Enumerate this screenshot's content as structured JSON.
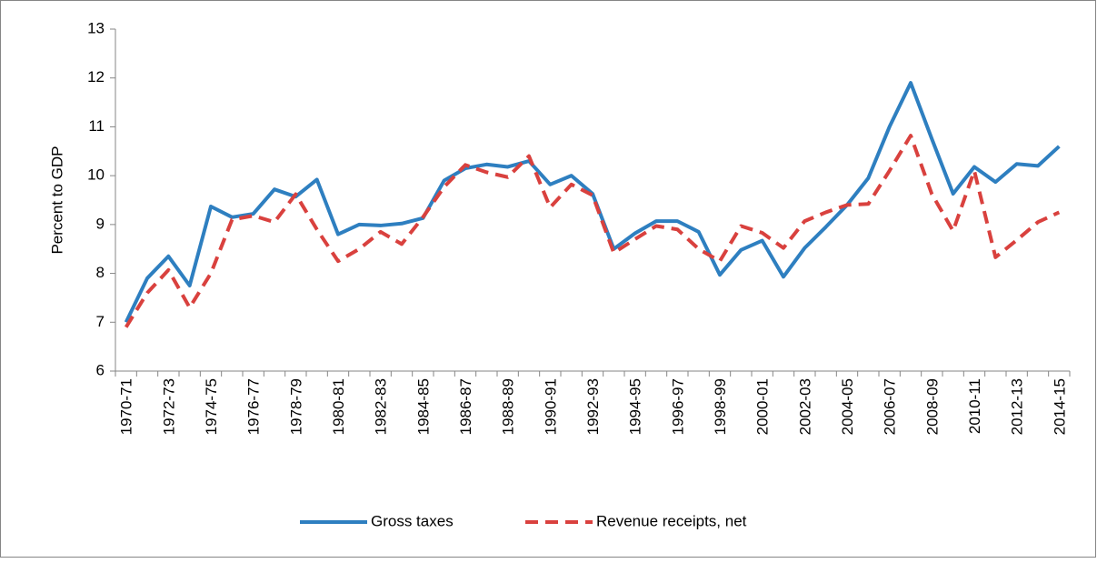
{
  "chart_data": {
    "type": "line",
    "ylabel": "Percent to GDP",
    "categories": [
      "1970-71",
      null,
      "1972-73",
      null,
      "1974-75",
      null,
      "1976-77",
      null,
      "1978-79",
      null,
      "1980-81",
      null,
      "1982-83",
      null,
      "1984-85",
      null,
      "1986-87",
      null,
      "1988-89",
      null,
      "1990-91",
      null,
      "1992-93",
      null,
      "1994-95",
      null,
      "1996-97",
      null,
      "1998-99",
      null,
      "2000-01",
      null,
      "2002-03",
      null,
      "2004-05",
      null,
      "2006-07",
      null,
      "2008-09",
      null,
      "2010-11",
      null,
      "2012-13",
      null,
      "2014-15"
    ],
    "series": [
      {
        "name": "Gross taxes",
        "color": "#2e7fc0",
        "dash": false,
        "values": [
          7.0,
          7.9,
          8.35,
          7.75,
          9.37,
          9.15,
          9.22,
          9.72,
          9.57,
          9.92,
          8.8,
          9.0,
          8.98,
          9.02,
          9.13,
          9.9,
          10.15,
          10.23,
          10.18,
          10.3,
          9.82,
          10.0,
          9.63,
          8.5,
          8.82,
          9.07,
          9.07,
          8.85,
          7.97,
          8.48,
          8.67,
          7.93,
          8.52,
          8.95,
          9.4,
          9.95,
          11.0,
          11.9,
          10.75,
          9.63,
          10.18,
          9.87,
          10.24,
          10.2,
          10.6
        ]
      },
      {
        "name": "Revenue receipts, net",
        "color": "#d9413e",
        "dash": true,
        "values": [
          6.9,
          7.6,
          8.07,
          7.3,
          8.0,
          9.1,
          9.18,
          9.05,
          9.62,
          8.9,
          8.25,
          8.5,
          8.85,
          8.6,
          9.15,
          9.77,
          10.22,
          10.07,
          9.97,
          10.4,
          9.35,
          9.82,
          9.6,
          8.42,
          8.7,
          8.97,
          8.9,
          8.5,
          8.25,
          8.97,
          8.83,
          8.52,
          9.07,
          9.25,
          9.4,
          9.42,
          10.1,
          10.82,
          9.62,
          8.87,
          10.1,
          8.33,
          8.68,
          9.05,
          9.25
        ]
      }
    ],
    "ylim": [
      6,
      13
    ],
    "yticks": [
      6,
      7,
      8,
      9,
      10,
      11,
      12,
      13
    ],
    "legend": "bottom"
  }
}
